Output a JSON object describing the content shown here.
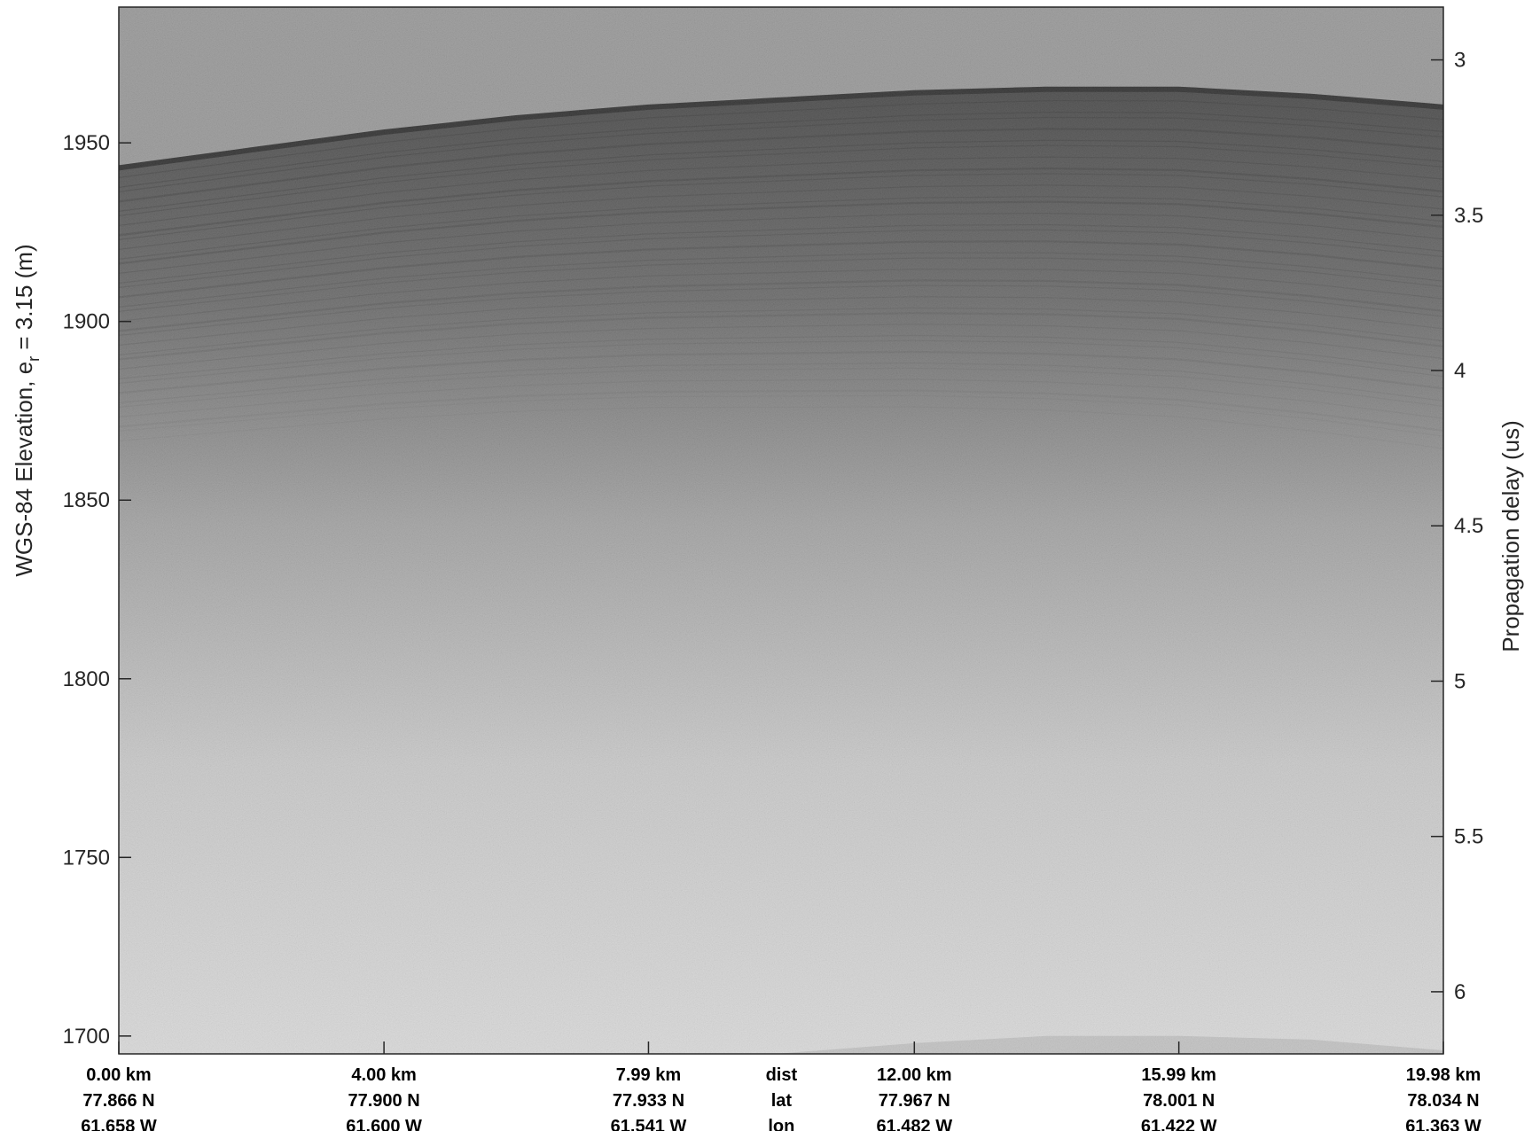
{
  "chart_data": {
    "type": "heatmap",
    "description_kind": "radar echogram (grayscale)",
    "colormap": [
      "#1a1a1a",
      "#e3e3e3"
    ],
    "left_axis": {
      "label_main": "WGS-84 Elevation, e",
      "label_sub": "r",
      "label_rest": " = 3.15 (m)",
      "ylim": [
        1695,
        1988
      ],
      "ticks": [
        1950,
        1900,
        1850,
        1800,
        1750,
        1700
      ],
      "tick_labels": [
        "1950",
        "1900",
        "1850",
        "1800",
        "1750",
        "1700"
      ]
    },
    "right_axis": {
      "label": "Propagation delay (us)",
      "ylim": [
        2.83,
        6.2
      ],
      "reversed": true,
      "ticks": [
        3,
        3.5,
        4,
        4.5,
        5,
        5.5,
        6
      ],
      "tick_labels": [
        "3",
        "3.5",
        "4",
        "4.5",
        "5",
        "5.5",
        "6"
      ]
    },
    "x_axis": {
      "xlim": [
        0,
        19.98
      ],
      "ticks": [
        0,
        4.0,
        7.99,
        12.0,
        15.99,
        19.98
      ],
      "row_titles": [
        "dist",
        "lat",
        "lon"
      ],
      "dist_labels": [
        "0.00 km",
        "4.00 km",
        "7.99 km",
        "12.00 km",
        "15.99 km",
        "19.98 km"
      ],
      "lat_labels": [
        "77.866 N",
        "77.900 N",
        "77.933 N",
        "77.967 N",
        "78.001 N",
        "78.034 N"
      ],
      "lon_labels": [
        "61.658 W",
        "61.600 W",
        "61.541 W",
        "61.482 W",
        "61.422 W",
        "61.363 W"
      ]
    },
    "surface_elevation": {
      "x": [
        0,
        2,
        4,
        6,
        8,
        10,
        12,
        14,
        16,
        18,
        19.98
      ],
      "y": [
        1943,
        1948,
        1953,
        1957,
        1960,
        1962,
        1964,
        1965,
        1965,
        1963,
        1960
      ]
    },
    "bed_reflector": {
      "x": [
        9.9,
        12,
        14,
        16,
        18,
        19.98
      ],
      "y": [
        1695,
        1698,
        1700,
        1700,
        1699,
        1696
      ]
    }
  }
}
